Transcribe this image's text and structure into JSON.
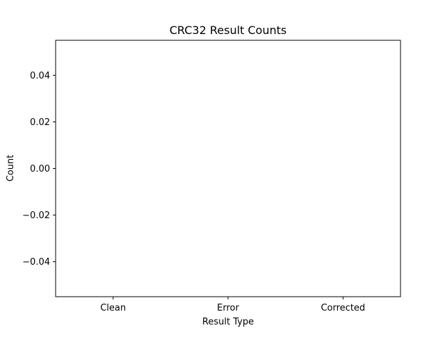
{
  "chart_data": {
    "type": "bar",
    "title": "CRC32 Result Counts",
    "xlabel": "Result Type",
    "ylabel": "Count",
    "categories": [
      "Clean",
      "Error",
      "Corrected"
    ],
    "values": [
      0,
      0,
      0
    ],
    "ylim": [
      -0.055,
      0.055
    ],
    "yticks": [
      0.04,
      0.02,
      0.0,
      -0.02,
      -0.04
    ],
    "ytick_labels": [
      "0.04",
      "0.02",
      "0.00",
      "−0.02",
      "−0.04"
    ],
    "grid": false,
    "legend": "none"
  }
}
